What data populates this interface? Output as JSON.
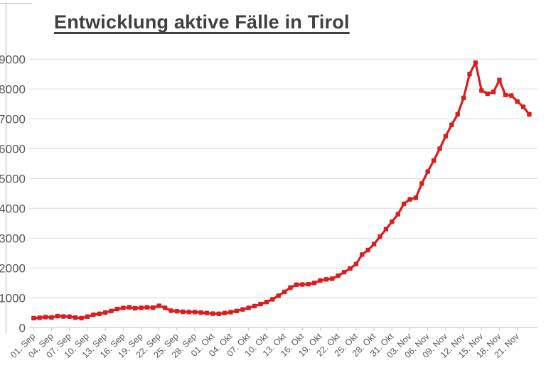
{
  "title": "Entwicklung aktive Fälle in Tirol",
  "colors": {
    "line": "#dd1c1e",
    "marker": "#dd1c1e",
    "title_text": "#3f3f3f",
    "axis_labels": "#595959",
    "gridline": "#d9d9d9",
    "axis_line": "#c6c6c6",
    "edge_border": "#b3b3b3",
    "background": "#ffffff"
  },
  "chart_data": {
    "type": "line",
    "title": "Entwicklung aktive Fälle in Tirol",
    "series_name": "aktive Fälle",
    "xlabel": "",
    "ylabel": "",
    "ylim": [
      0,
      9000
    ],
    "y_ticks": [
      0,
      1000,
      2000,
      3000,
      4000,
      5000,
      6000,
      7000,
      8000,
      9000
    ],
    "grid": "horizontal",
    "legend": "none",
    "marker": "square",
    "points_per_tick": 3,
    "x_tick_labels": [
      "01. Sep",
      "04. Sep",
      "07. Sep",
      "10. Sep",
      "13. Sep",
      "16. Sep",
      "19. Sep",
      "22. Sep",
      "25. Sep",
      "28. Sep",
      "01. Okt",
      "04. Okt",
      "07. Okt",
      "10. Okt",
      "13. Okt",
      "16. Okt",
      "19. Okt",
      "22. Okt",
      "25. Okt",
      "28. Okt",
      "31. Okt",
      "03. Nov",
      "06. Nov",
      "09. Nov",
      "12. Nov",
      "15. Nov",
      "18. Nov",
      "21. Nov"
    ],
    "x_range_note": "daily values from 01. Sep to 23. Nov",
    "values": [
      320,
      330,
      355,
      340,
      385,
      375,
      370,
      335,
      320,
      370,
      430,
      465,
      505,
      560,
      625,
      660,
      680,
      650,
      665,
      680,
      670,
      730,
      665,
      570,
      550,
      530,
      525,
      525,
      505,
      490,
      470,
      465,
      490,
      520,
      560,
      610,
      665,
      725,
      790,
      860,
      950,
      1070,
      1200,
      1340,
      1440,
      1445,
      1455,
      1500,
      1580,
      1620,
      1640,
      1740,
      1860,
      1980,
      2130,
      2450,
      2600,
      2800,
      3050,
      3300,
      3550,
      3800,
      4150,
      4300,
      4350,
      4830,
      5230,
      5600,
      6000,
      6420,
      6800,
      7150,
      7700,
      8500,
      8880,
      7950,
      7840,
      7900,
      8300,
      7800,
      7780,
      7580,
      7400,
      7150
    ]
  }
}
